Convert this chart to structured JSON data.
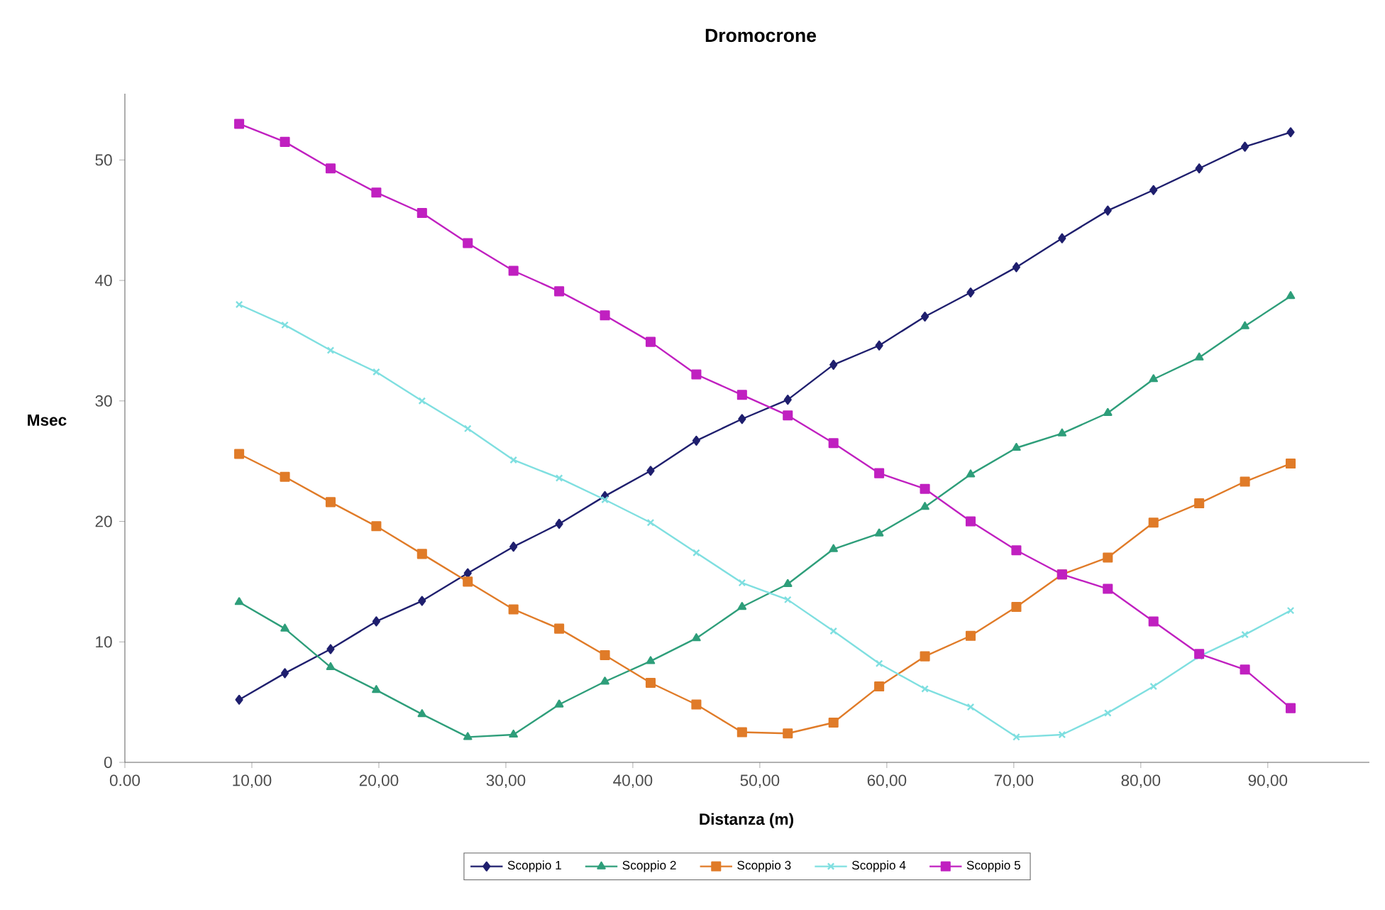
{
  "chart_data": {
    "type": "line",
    "title": "Dromocrone",
    "xlabel": "Distanza (m)",
    "ylabel": "Msec",
    "x": [
      9.0,
      12.6,
      16.2,
      19.8,
      23.4,
      27.0,
      30.6,
      34.2,
      37.8,
      41.4,
      45.0,
      48.6,
      52.2,
      55.8,
      59.4,
      63.0,
      66.6,
      70.2,
      73.8,
      77.4,
      81.0,
      84.6,
      88.2,
      91.8
    ],
    "series": [
      {
        "name": "Scoppio 1",
        "color": "#1f1f6e",
        "marker": "diamond",
        "values": [
          5.2,
          7.4,
          9.4,
          11.7,
          13.4,
          15.7,
          17.9,
          19.8,
          22.1,
          24.2,
          26.7,
          28.5,
          30.1,
          33.0,
          34.6,
          37.0,
          39.0,
          41.1,
          43.5,
          45.8,
          47.5,
          49.3,
          51.1,
          52.3
        ]
      },
      {
        "name": "Scoppio 2",
        "color": "#2e9e7a",
        "marker": "triangle",
        "values": [
          13.3,
          11.1,
          7.9,
          6.0,
          4.0,
          2.1,
          2.3,
          4.8,
          6.7,
          8.4,
          10.3,
          12.9,
          14.8,
          17.7,
          19.0,
          21.2,
          23.9,
          26.1,
          27.3,
          29.0,
          31.8,
          33.6,
          36.2,
          38.7
        ]
      },
      {
        "name": "Scoppio 3",
        "color": "#e07b28",
        "marker": "square",
        "values": [
          25.6,
          23.7,
          21.6,
          19.6,
          17.3,
          15.0,
          12.7,
          11.1,
          8.9,
          6.6,
          4.8,
          2.5,
          2.4,
          3.3,
          6.3,
          8.8,
          10.5,
          12.9,
          15.6,
          17.0,
          19.9,
          21.5,
          23.3,
          24.8
        ]
      },
      {
        "name": "Scoppio 4",
        "color": "#7fdfe0",
        "marker": "cross",
        "values": [
          38.0,
          36.3,
          34.2,
          32.4,
          30.0,
          27.7,
          25.1,
          23.6,
          21.8,
          19.9,
          17.4,
          14.9,
          13.5,
          10.9,
          8.2,
          6.1,
          4.6,
          2.1,
          2.3,
          4.1,
          6.3,
          8.8,
          10.6,
          12.6
        ]
      },
      {
        "name": "Scoppio 5",
        "color": "#c020c0",
        "marker": "square",
        "values": [
          53.0,
          51.5,
          49.3,
          47.3,
          45.6,
          43.1,
          40.8,
          39.1,
          37.1,
          34.9,
          32.2,
          30.5,
          28.8,
          26.5,
          24.0,
          22.7,
          20.0,
          17.6,
          15.6,
          14.4,
          11.7,
          9.0,
          7.7,
          4.5
        ]
      }
    ],
    "xlim": [
      0,
      98
    ],
    "ylim": [
      0,
      55.5
    ],
    "xticks": [
      {
        "value": 0,
        "label": "0.00"
      },
      {
        "value": 10,
        "label": "10,00"
      },
      {
        "value": 20,
        "label": "20,00"
      },
      {
        "value": 30,
        "label": "30,00"
      },
      {
        "value": 40,
        "label": "40,00"
      },
      {
        "value": 50,
        "label": "50,00"
      },
      {
        "value": 60,
        "label": "60,00"
      },
      {
        "value": 70,
        "label": "70,00"
      },
      {
        "value": 80,
        "label": "80,00"
      },
      {
        "value": 90,
        "label": "90,00"
      }
    ],
    "yticks": [
      0,
      10,
      20,
      30,
      40,
      50
    ],
    "grid": false,
    "legend": "bottom",
    "line_style": "solid"
  }
}
